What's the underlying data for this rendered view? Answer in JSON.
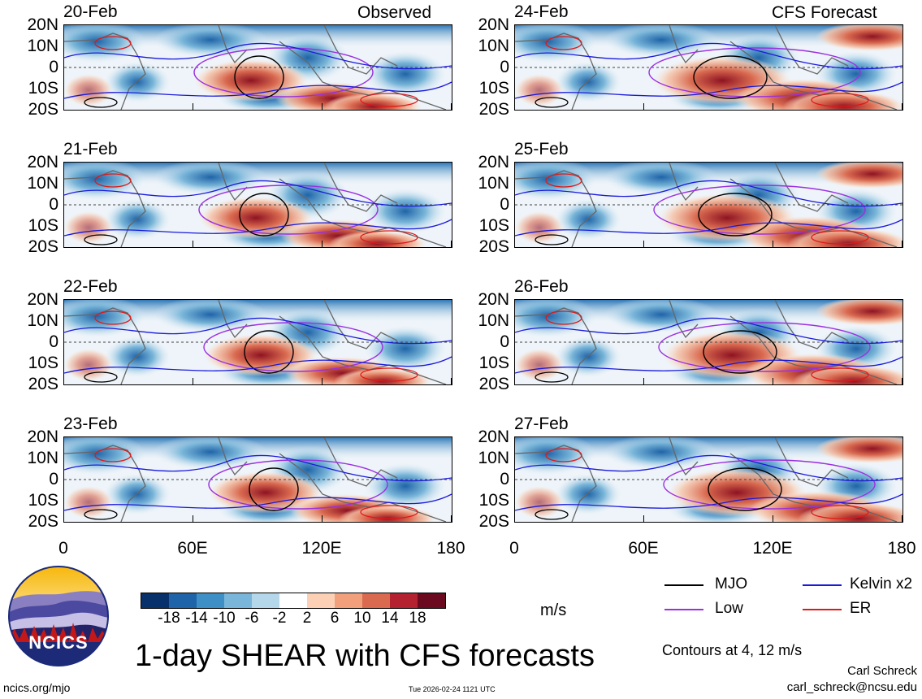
{
  "observed_label": "Observed",
  "forecast_label": "CFS Forecast",
  "panels": [
    {
      "date": "20-Feb"
    },
    {
      "date": "21-Feb"
    },
    {
      "date": "22-Feb"
    },
    {
      "date": "23-Feb"
    },
    {
      "date": "24-Feb"
    },
    {
      "date": "25-Feb"
    },
    {
      "date": "26-Feb"
    },
    {
      "date": "27-Feb"
    }
  ],
  "lat_labels": [
    "20N",
    "10N",
    "0",
    "10S",
    "20S"
  ],
  "lon_labels": [
    "0",
    "60E",
    "120E",
    "180"
  ],
  "colorbar": {
    "ticks": [
      "-18",
      "-14",
      "-10",
      "-6",
      "-2",
      "2",
      "6",
      "10",
      "14",
      "18"
    ],
    "colors": [
      "#08306b",
      "#1f64a8",
      "#3e8fc5",
      "#7ab6d9",
      "#b5d7ea",
      "#ffffff",
      "#fcd0b5",
      "#f2a07c",
      "#d96a50",
      "#b4222f",
      "#6b0a1f"
    ],
    "units": "m/s"
  },
  "legend": {
    "mjo": "MJO",
    "kelvin": "Kelvin x2",
    "low": "Low",
    "er": "ER",
    "contours": "Contours at 4, 12 m/s",
    "colors": {
      "mjo": "#000000",
      "kelvin": "#1a1adb",
      "low": "#9b30e0",
      "er": "#e01818"
    }
  },
  "title": "1-day SHEAR with CFS forecasts",
  "logo_text": "NCICS",
  "footer": {
    "site": "ncics.org/mjo",
    "timestamp": "Tue 2026-02-24 1121 UTC",
    "author": "Carl Schreck",
    "email": "carl_schreck@ncsu.edu"
  }
}
